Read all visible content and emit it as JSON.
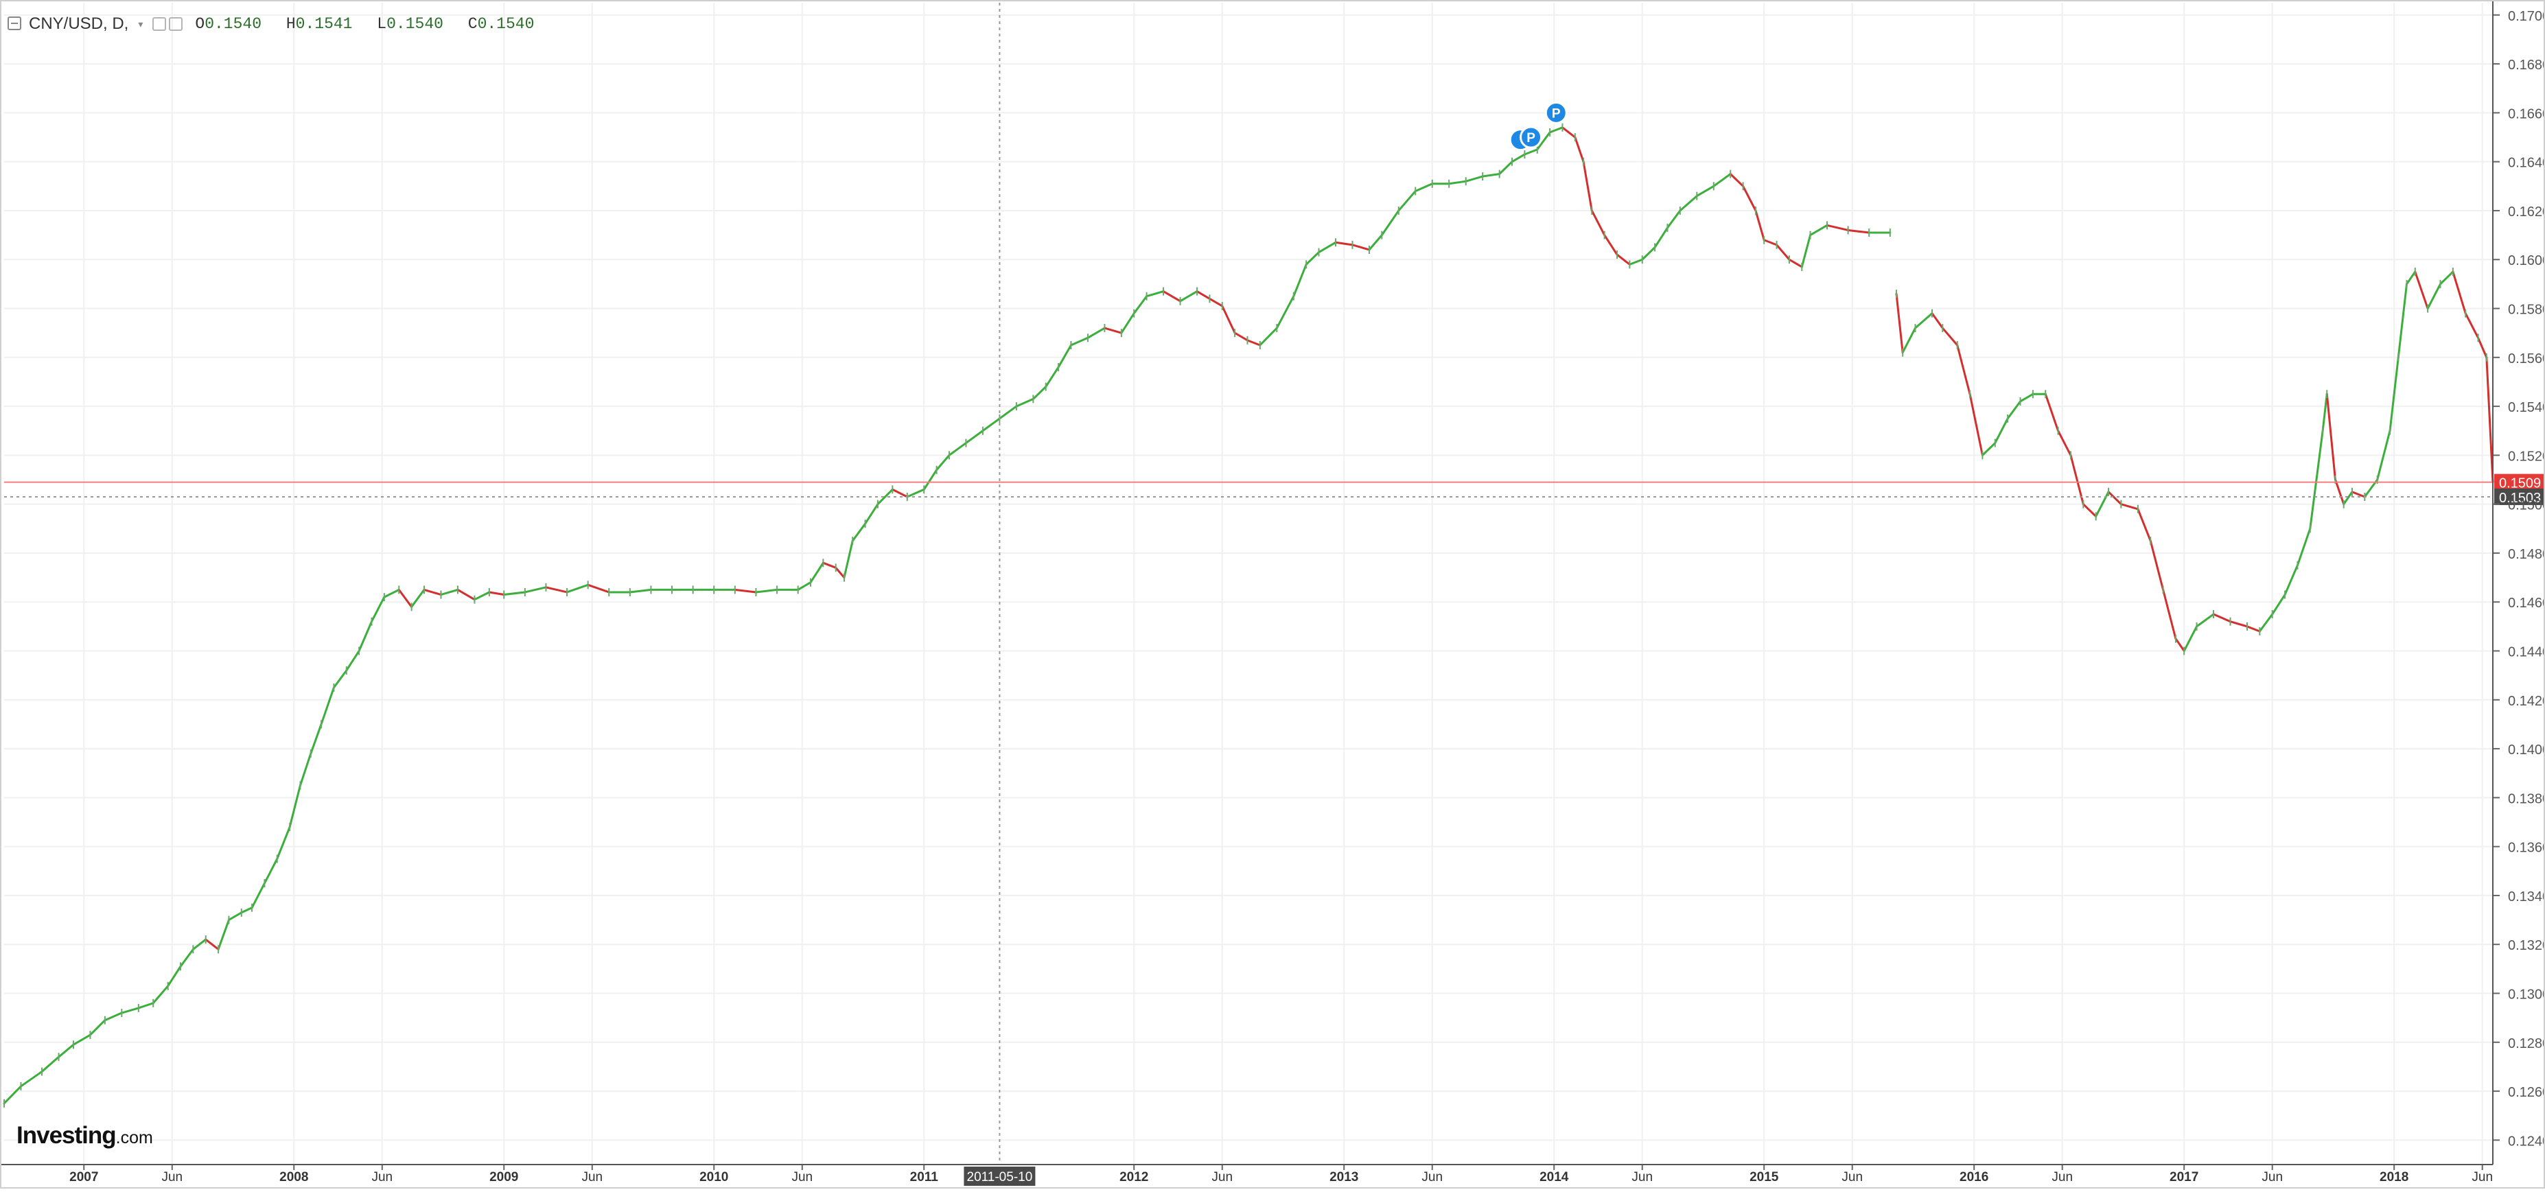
{
  "legend": {
    "symbol": "CNY/USD, D,",
    "open_label": "O",
    "open": "0.1540",
    "high_label": "H",
    "high": "0.1541",
    "low_label": "L",
    "low": "0.1540",
    "close_label": "C",
    "close": "0.1540"
  },
  "brand": {
    "logo_main": "Investing",
    "logo_suffix": ".com"
  },
  "colors": {
    "up": "#26a69a",
    "up_line": "#3cae3c",
    "down": "#d32f2f",
    "grid": "#f0f0f0",
    "axis": "#555555",
    "price_line": "#f27d7d",
    "price_tag": "#e53935",
    "crosshair_tag": "#4a4a4a",
    "marker": "#1e88e5"
  },
  "icons": [
    "collapse-icon",
    "settings-icon",
    "close-icon",
    "event-marker-icon"
  ],
  "chart_data": {
    "type": "line",
    "title": "",
    "xlabel": "",
    "ylabel": "",
    "ylim": [
      0.123,
      0.1705
    ],
    "xlim": [
      2006.62,
      2018.47
    ],
    "grid": true,
    "y_ticks": [
      "0.1240",
      "0.1260",
      "0.1280",
      "0.1300",
      "0.1320",
      "0.1340",
      "0.1360",
      "0.1380",
      "0.1400",
      "0.1420",
      "0.1440",
      "0.1460",
      "0.1480",
      "0.1500",
      "0.1520",
      "0.1540",
      "0.1560",
      "0.1580",
      "0.1600",
      "0.1620",
      "0.1640",
      "0.1660",
      "0.1680",
      "0.1700"
    ],
    "x_ticks": [
      {
        "label": "2007",
        "x": 2007.0,
        "bold": true
      },
      {
        "label": "Jun",
        "x": 2007.42,
        "bold": false
      },
      {
        "label": "2008",
        "x": 2008.0,
        "bold": true
      },
      {
        "label": "Jun",
        "x": 2008.42,
        "bold": false
      },
      {
        "label": "2009",
        "x": 2009.0,
        "bold": true
      },
      {
        "label": "Jun",
        "x": 2009.42,
        "bold": false
      },
      {
        "label": "2010",
        "x": 2010.0,
        "bold": true
      },
      {
        "label": "Jun",
        "x": 2010.42,
        "bold": false
      },
      {
        "label": "2011",
        "x": 2011.0,
        "bold": true
      },
      {
        "label": "2012",
        "x": 2012.0,
        "bold": true
      },
      {
        "label": "Jun",
        "x": 2012.42,
        "bold": false
      },
      {
        "label": "2013",
        "x": 2013.0,
        "bold": true
      },
      {
        "label": "Jun",
        "x": 2013.42,
        "bold": false
      },
      {
        "label": "2014",
        "x": 2014.0,
        "bold": true
      },
      {
        "label": "Jun",
        "x": 2014.42,
        "bold": false
      },
      {
        "label": "2015",
        "x": 2015.0,
        "bold": true
      },
      {
        "label": "Jun",
        "x": 2015.42,
        "bold": false
      },
      {
        "label": "2016",
        "x": 2016.0,
        "bold": true
      },
      {
        "label": "Jun",
        "x": 2016.42,
        "bold": false
      },
      {
        "label": "2017",
        "x": 2017.0,
        "bold": true
      },
      {
        "label": "Jun",
        "x": 2017.42,
        "bold": false
      },
      {
        "label": "2018",
        "x": 2018.0,
        "bold": true
      },
      {
        "label": "Jun",
        "x": 2018.42,
        "bold": false
      }
    ],
    "crosshair": {
      "x": 2011.36,
      "x_label": "2011-05-10",
      "y": 0.1503,
      "y_label": "0.1503"
    },
    "last_price": {
      "y": 0.1509,
      "label": "0.1509"
    },
    "markers": [
      {
        "x": 2013.84,
        "y": 0.1649,
        "label": ""
      },
      {
        "x": 2013.89,
        "y": 0.165,
        "label": "P"
      },
      {
        "x": 2014.01,
        "y": 0.166,
        "label": "P"
      }
    ],
    "series": [
      {
        "segments": [
          [
            [
              2006.62,
              0.1255
            ],
            [
              2006.7,
              0.1262
            ],
            [
              2006.8,
              0.1268
            ],
            [
              2006.88,
              0.1274
            ],
            [
              2006.95,
              0.1279
            ],
            [
              2007.03,
              0.1283
            ],
            [
              2007.1,
              0.1289
            ],
            [
              2007.18,
              0.1292
            ],
            [
              2007.26,
              0.1294
            ],
            [
              2007.33,
              0.1296
            ],
            [
              2007.4,
              0.1303
            ],
            [
              2007.46,
              0.1311
            ],
            [
              2007.52,
              0.1318
            ],
            [
              2007.58,
              0.1322
            ],
            [
              2007.64,
              0.1318
            ],
            [
              2007.69,
              0.133
            ],
            [
              2007.75,
              0.1333
            ],
            [
              2007.8,
              0.1335
            ],
            [
              2007.86,
              0.1345
            ],
            [
              2007.92,
              0.1355
            ],
            [
              2007.98,
              0.1368
            ],
            [
              2008.03,
              0.1385
            ],
            [
              2008.08,
              0.1398
            ],
            [
              2008.13,
              0.141
            ],
            [
              2008.19,
              0.1425
            ],
            [
              2008.25,
              0.1432
            ],
            [
              2008.31,
              0.144
            ],
            [
              2008.37,
              0.1452
            ],
            [
              2008.43,
              0.1462
            ],
            [
              2008.5,
              0.1465
            ],
            [
              2008.56,
              0.1458
            ],
            [
              2008.62,
              0.1465
            ],
            [
              2008.7,
              0.1463
            ],
            [
              2008.78,
              0.1465
            ],
            [
              2008.86,
              0.1461
            ],
            [
              2008.93,
              0.1464
            ],
            [
              2009.0,
              0.1463
            ],
            [
              2009.1,
              0.1464
            ],
            [
              2009.2,
              0.1466
            ],
            [
              2009.3,
              0.1464
            ],
            [
              2009.4,
              0.1467
            ],
            [
              2009.5,
              0.1464
            ],
            [
              2009.6,
              0.1464
            ],
            [
              2009.7,
              0.1465
            ],
            [
              2009.8,
              0.1465
            ],
            [
              2009.9,
              0.1465
            ],
            [
              2010.0,
              0.1465
            ],
            [
              2010.1,
              0.1465
            ],
            [
              2010.2,
              0.1464
            ],
            [
              2010.3,
              0.1465
            ],
            [
              2010.4,
              0.1465
            ],
            [
              2010.46,
              0.1468
            ],
            [
              2010.52,
              0.1476
            ],
            [
              2010.58,
              0.1474
            ],
            [
              2010.62,
              0.147
            ],
            [
              2010.66,
              0.1485
            ],
            [
              2010.72,
              0.1492
            ],
            [
              2010.78,
              0.15
            ],
            [
              2010.85,
              0.1506
            ],
            [
              2010.92,
              0.1503
            ],
            [
              2011.0,
              0.1506
            ],
            [
              2011.06,
              0.1514
            ],
            [
              2011.12,
              0.152
            ],
            [
              2011.2,
              0.1525
            ],
            [
              2011.28,
              0.153
            ],
            [
              2011.36,
              0.1535
            ],
            [
              2011.44,
              0.154
            ],
            [
              2011.52,
              0.1543
            ],
            [
              2011.58,
              0.1548
            ],
            [
              2011.64,
              0.1556
            ],
            [
              2011.7,
              0.1565
            ],
            [
              2011.78,
              0.1568
            ],
            [
              2011.86,
              0.1572
            ],
            [
              2011.94,
              0.157
            ],
            [
              2012.0,
              0.1578
            ],
            [
              2012.06,
              0.1585
            ],
            [
              2012.14,
              0.1587
            ],
            [
              2012.22,
              0.1583
            ],
            [
              2012.3,
              0.1587
            ],
            [
              2012.36,
              0.1584
            ],
            [
              2012.42,
              0.1581
            ],
            [
              2012.48,
              0.157
            ],
            [
              2012.54,
              0.1567
            ],
            [
              2012.6,
              0.1565
            ],
            [
              2012.68,
              0.1572
            ],
            [
              2012.76,
              0.1585
            ],
            [
              2012.82,
              0.1598
            ],
            [
              2012.88,
              0.1603
            ],
            [
              2012.96,
              0.1607
            ],
            [
              2013.04,
              0.1606
            ],
            [
              2013.12,
              0.1604
            ],
            [
              2013.18,
              0.161
            ],
            [
              2013.26,
              0.162
            ],
            [
              2013.34,
              0.1628
            ],
            [
              2013.42,
              0.1631
            ],
            [
              2013.5,
              0.1631
            ],
            [
              2013.58,
              0.1632
            ],
            [
              2013.66,
              0.1634
            ],
            [
              2013.74,
              0.1635
            ],
            [
              2013.8,
              0.164
            ],
            [
              2013.86,
              0.1643
            ],
            [
              2013.92,
              0.1645
            ],
            [
              2013.98,
              0.1652
            ],
            [
              2014.04,
              0.1654
            ],
            [
              2014.1,
              0.165
            ],
            [
              2014.14,
              0.164
            ],
            [
              2014.18,
              0.162
            ],
            [
              2014.24,
              0.161
            ],
            [
              2014.3,
              0.1602
            ],
            [
              2014.36,
              0.1598
            ],
            [
              2014.42,
              0.16
            ],
            [
              2014.48,
              0.1605
            ],
            [
              2014.54,
              0.1613
            ],
            [
              2014.6,
              0.162
            ],
            [
              2014.68,
              0.1626
            ],
            [
              2014.76,
              0.163
            ],
            [
              2014.84,
              0.1635
            ],
            [
              2014.9,
              0.163
            ],
            [
              2014.96,
              0.162
            ],
            [
              2015.0,
              0.1608
            ],
            [
              2015.06,
              0.1606
            ],
            [
              2015.12,
              0.16
            ],
            [
              2015.18,
              0.1597
            ],
            [
              2015.22,
              0.161
            ],
            [
              2015.3,
              0.1614
            ],
            [
              2015.4,
              0.1612
            ],
            [
              2015.5,
              0.1611
            ],
            [
              2015.6,
              0.1611
            ]
          ],
          [
            [
              2015.63,
              0.1586
            ],
            [
              2015.66,
              0.1562
            ],
            [
              2015.72,
              0.1572
            ],
            [
              2015.8,
              0.1578
            ],
            [
              2015.85,
              0.1572
            ],
            [
              2015.92,
              0.1565
            ],
            [
              2015.98,
              0.1545
            ],
            [
              2016.04,
              0.152
            ],
            [
              2016.1,
              0.1525
            ],
            [
              2016.16,
              0.1535
            ],
            [
              2016.22,
              0.1542
            ],
            [
              2016.28,
              0.1545
            ],
            [
              2016.34,
              0.1545
            ],
            [
              2016.4,
              0.153
            ],
            [
              2016.46,
              0.152
            ],
            [
              2016.52,
              0.15
            ],
            [
              2016.58,
              0.1495
            ],
            [
              2016.64,
              0.1505
            ],
            [
              2016.7,
              0.15
            ],
            [
              2016.78,
              0.1498
            ],
            [
              2016.84,
              0.1485
            ],
            [
              2016.9,
              0.1465
            ],
            [
              2016.96,
              0.1445
            ],
            [
              2017.0,
              0.144
            ],
            [
              2017.06,
              0.145
            ],
            [
              2017.14,
              0.1455
            ],
            [
              2017.22,
              0.1452
            ],
            [
              2017.3,
              0.145
            ],
            [
              2017.36,
              0.1448
            ],
            [
              2017.42,
              0.1455
            ],
            [
              2017.48,
              0.1463
            ],
            [
              2017.54,
              0.1475
            ],
            [
              2017.6,
              0.149
            ],
            [
              2017.66,
              0.153
            ],
            [
              2017.68,
              0.1545
            ],
            [
              2017.72,
              0.151
            ],
            [
              2017.76,
              0.15
            ],
            [
              2017.8,
              0.1505
            ],
            [
              2017.86,
              0.1503
            ],
            [
              2017.92,
              0.151
            ],
            [
              2017.98,
              0.153
            ],
            [
              2018.02,
              0.156
            ],
            [
              2018.06,
              0.159
            ],
            [
              2018.1,
              0.1595
            ],
            [
              2018.16,
              0.158
            ],
            [
              2018.22,
              0.159
            ],
            [
              2018.28,
              0.1595
            ],
            [
              2018.34,
              0.1578
            ],
            [
              2018.4,
              0.1568
            ],
            [
              2018.44,
              0.156
            ],
            [
              2018.47,
              0.1509
            ]
          ]
        ]
      }
    ]
  }
}
